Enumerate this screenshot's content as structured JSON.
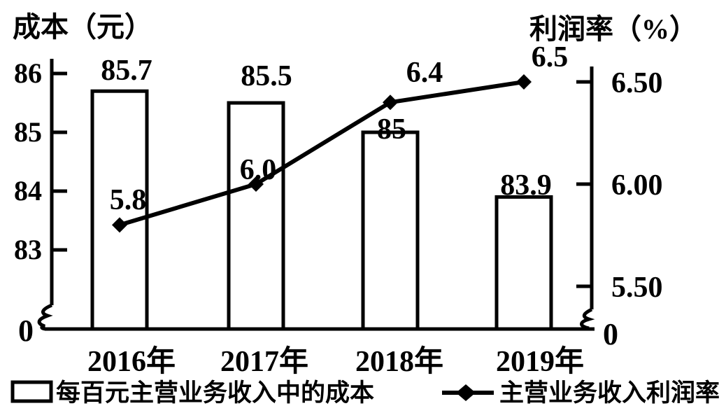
{
  "page": {
    "background": "#ffffff",
    "foreground": "#000000"
  },
  "titles": {
    "left_axis": "成本（元）",
    "right_axis": "利润率（%）"
  },
  "chart_data": {
    "type": "bar+line",
    "grid": false,
    "categories": [
      "2016年",
      "2017年",
      "2018年",
      "2019年"
    ],
    "series": [
      {
        "name": "每百元主营业务收入中的成本",
        "type": "bar",
        "axis": "left",
        "bar_style": "white fill, black outline",
        "values": [
          85.7,
          85.5,
          85,
          83.9
        ],
        "labels": [
          "85.7",
          "85.5",
          "85",
          "83.9"
        ]
      },
      {
        "name": "主营业务收入利润率",
        "type": "line",
        "axis": "right",
        "marker": "diamond",
        "values": [
          5.8,
          6.0,
          6.4,
          6.5
        ],
        "labels": [
          "5.8",
          "6.0",
          "6.4",
          "6.5"
        ]
      }
    ],
    "left_axis": {
      "title": "成本（元）",
      "ticks": [
        "86",
        "85",
        "84",
        "83"
      ],
      "tick_values": [
        86,
        85,
        84,
        83
      ],
      "range_shown": [
        83,
        86
      ],
      "origin_label": "0",
      "axis_break": true
    },
    "right_axis": {
      "title": "利润率（%）",
      "ticks": [
        "6.50",
        "6.00",
        "5.50"
      ],
      "tick_values": [
        6.5,
        6.0,
        5.5
      ],
      "range_shown": [
        5.5,
        6.5
      ],
      "origin_label": "0",
      "axis_break": true
    },
    "legend": {
      "position": "bottom",
      "entries": [
        {
          "label": "每百元主营业务收入中的成本",
          "marker": "open-rectangle"
        },
        {
          "label": "主营业务收入利润率",
          "marker": "line-with-diamond"
        }
      ]
    }
  },
  "legend": {
    "bar_label": "每百元主营业务收入中的成本",
    "line_label": "主营业务收入利润率"
  }
}
